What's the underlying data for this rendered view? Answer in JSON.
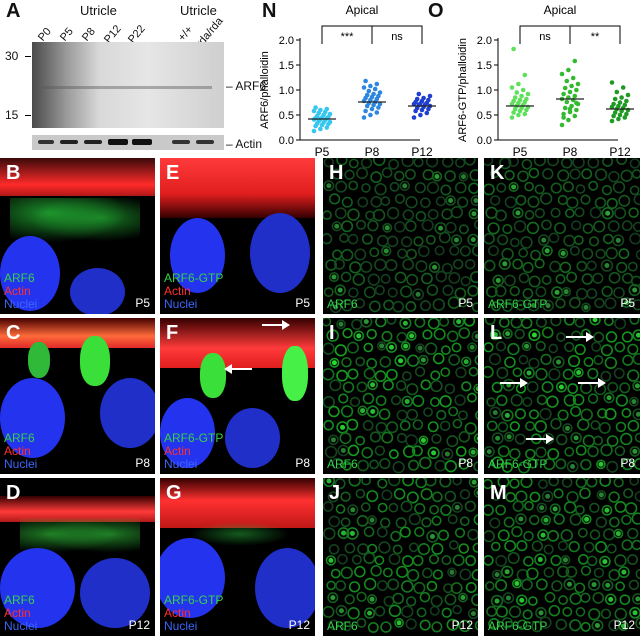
{
  "panelA": {
    "letter": "A",
    "group_label_left": "Utricle",
    "group_label_right": "Utricle",
    "lanes": [
      "P0",
      "P5",
      "P8",
      "P12",
      "P22",
      "+/+",
      "rda/rda"
    ],
    "mw_markers": [
      "30",
      "15"
    ],
    "band_labels": [
      "– ARF6",
      "– Actin"
    ]
  },
  "panelN": {
    "letter": "N",
    "chart_data": {
      "type": "scatter",
      "title": "Apical",
      "ylabel": "ARF6/phalloidin",
      "categories": [
        "P5",
        "P8",
        "P12"
      ],
      "ylim": [
        0,
        2.0
      ],
      "yticks": [
        "0.0",
        "0.5",
        "1.0",
        "1.5",
        "2.0"
      ],
      "means": [
        0.42,
        0.76,
        0.68
      ],
      "colors": [
        "#35c7f0",
        "#2d86e0",
        "#1e3fd0"
      ],
      "values": [
        [
          0.18,
          0.22,
          0.25,
          0.28,
          0.3,
          0.32,
          0.33,
          0.35,
          0.36,
          0.38,
          0.4,
          0.41,
          0.42,
          0.43,
          0.44,
          0.45,
          0.46,
          0.48,
          0.5,
          0.52,
          0.54,
          0.56,
          0.58,
          0.6,
          0.62,
          0.65
        ],
        [
          0.45,
          0.5,
          0.55,
          0.58,
          0.62,
          0.65,
          0.68,
          0.7,
          0.72,
          0.74,
          0.76,
          0.78,
          0.8,
          0.82,
          0.84,
          0.86,
          0.88,
          0.9,
          0.92,
          0.95,
          0.98,
          1.02,
          1.05,
          1.08,
          1.12,
          1.18
        ],
        [
          0.45,
          0.5,
          0.54,
          0.58,
          0.6,
          0.62,
          0.64,
          0.66,
          0.68,
          0.7,
          0.71,
          0.72,
          0.73,
          0.74,
          0.76,
          0.78,
          0.8,
          0.82,
          0.84,
          0.88,
          0.92
        ]
      ],
      "comparisons": [
        {
          "from": 0,
          "to": 1,
          "label": "***"
        },
        {
          "from": 1,
          "to": 2,
          "label": "ns"
        }
      ]
    }
  },
  "panelO": {
    "letter": "O",
    "chart_data": {
      "type": "scatter",
      "title": "Apical",
      "ylabel": "ARF6-GTP/phalloidin",
      "categories": [
        "P5",
        "P8",
        "P12"
      ],
      "ylim": [
        0,
        2.0
      ],
      "yticks": [
        "0.0",
        "0.5",
        "1.0",
        "1.5",
        "2.0"
      ],
      "means": [
        0.68,
        0.82,
        0.62
      ],
      "colors": [
        "#5ee05a",
        "#33bb30",
        "#1f9a22"
      ],
      "values": [
        [
          0.45,
          0.5,
          0.52,
          0.55,
          0.58,
          0.6,
          0.62,
          0.64,
          0.66,
          0.68,
          0.7,
          0.72,
          0.74,
          0.76,
          0.78,
          0.8,
          0.82,
          0.85,
          0.88,
          0.92,
          0.95,
          1.0,
          1.05,
          1.12,
          1.3,
          1.82
        ],
        [
          0.3,
          0.4,
          0.48,
          0.52,
          0.56,
          0.6,
          0.64,
          0.68,
          0.72,
          0.76,
          0.8,
          0.82,
          0.85,
          0.88,
          0.92,
          0.96,
          1.0,
          1.04,
          1.08,
          1.12,
          1.18,
          1.24,
          1.32,
          1.4,
          1.58,
          0.45,
          0.62,
          0.74
        ],
        [
          0.38,
          0.42,
          0.45,
          0.48,
          0.5,
          0.52,
          0.55,
          0.58,
          0.6,
          0.62,
          0.64,
          0.66,
          0.68,
          0.7,
          0.72,
          0.75,
          0.78,
          0.82,
          0.85,
          0.9,
          0.96,
          1.05,
          1.15
        ]
      ],
      "comparisons": [
        {
          "from": 0,
          "to": 1,
          "label": "ns"
        },
        {
          "from": 1,
          "to": 2,
          "label": "**"
        }
      ]
    }
  },
  "micro": {
    "B": {
      "letter": "B",
      "labels": [
        "ARF6",
        "Actin",
        "Nuclei"
      ],
      "age": "P5"
    },
    "C": {
      "letter": "C",
      "labels": [
        "ARF6",
        "Actin",
        "Nuclei"
      ],
      "age": "P8"
    },
    "D": {
      "letter": "D",
      "labels": [
        "ARF6",
        "Actin",
        "Nuclei"
      ],
      "age": "P12"
    },
    "E": {
      "letter": "E",
      "labels": [
        "ARF6-GTP",
        "Actin",
        "Nuclei"
      ],
      "age": "P5"
    },
    "F": {
      "letter": "F",
      "labels": [
        "ARF6-GTP",
        "Actin",
        "Nuclei"
      ],
      "age": "P8"
    },
    "G": {
      "letter": "G",
      "labels": [
        "ARF6-GTP",
        "Actin",
        "Nuclei"
      ],
      "age": "P12"
    },
    "H": {
      "letter": "H",
      "label": "ARF6",
      "age": "P5"
    },
    "I": {
      "letter": "I",
      "label": "ARF6",
      "age": "P8"
    },
    "J": {
      "letter": "J",
      "label": "ARF6",
      "age": "P12"
    },
    "K": {
      "letter": "K",
      "label": "ARF6-GTP",
      "age": "P5"
    },
    "L": {
      "letter": "L",
      "label": "ARF6-GTP",
      "age": "P8"
    },
    "M": {
      "letter": "M",
      "label": "ARF6-GTP",
      "age": "P12"
    }
  },
  "colors": {
    "green": "#35d34a",
    "red": "#ff3030",
    "blue": "#3a66ff"
  }
}
